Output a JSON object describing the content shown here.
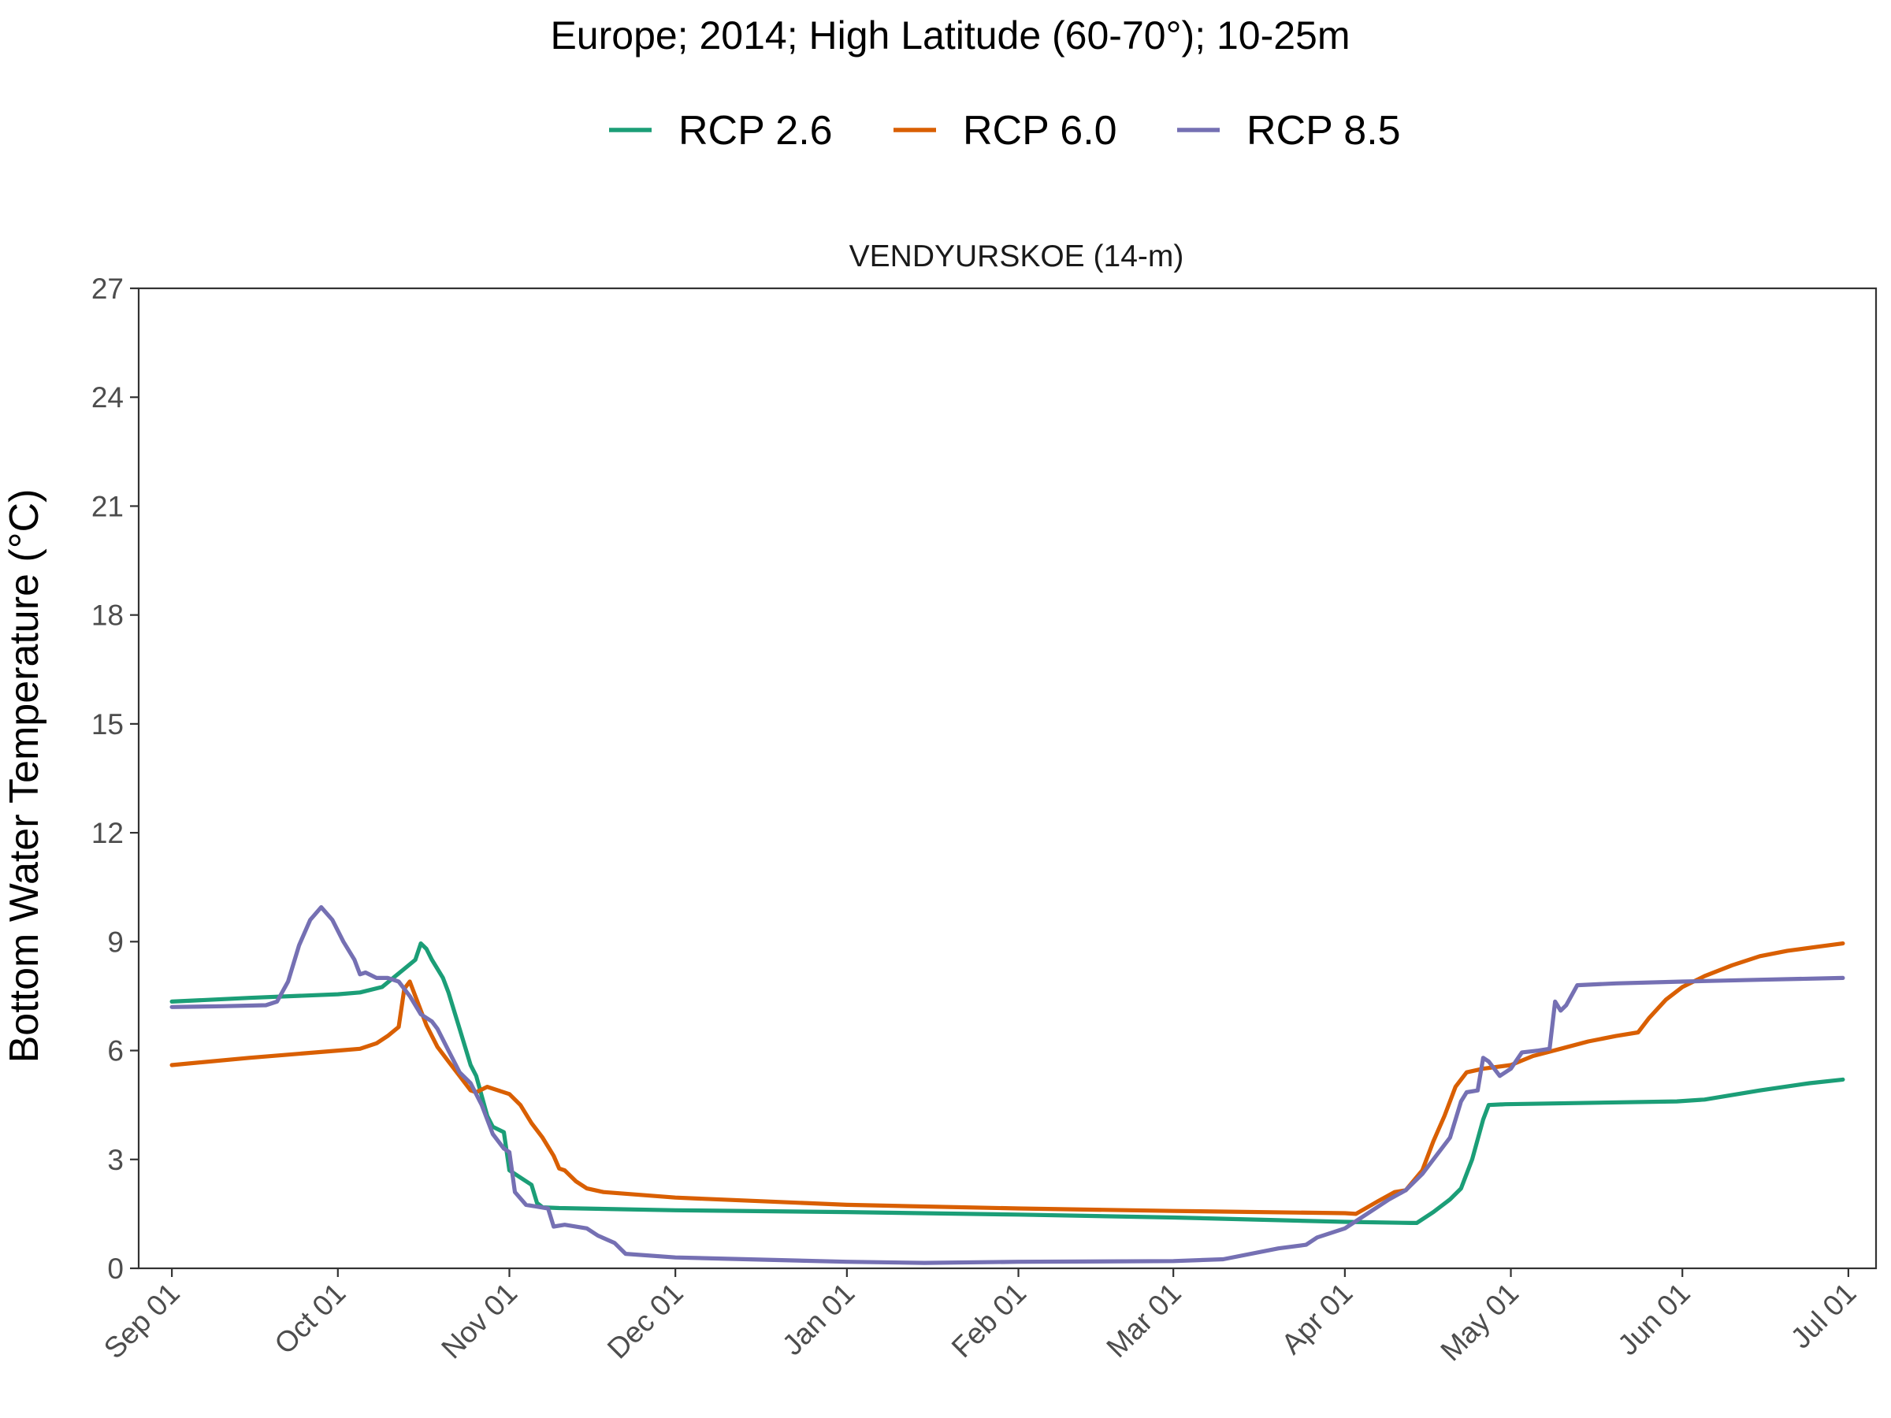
{
  "chart_data": {
    "type": "line",
    "title": "Europe;  2014;  High Latitude (60-70°);  10-25m",
    "subtitle": "VENDYURSKOE (14-m)",
    "xlabel": "",
    "ylabel": "Bottom Water Temperature (°C)",
    "ylim": [
      0,
      27
    ],
    "yticks": [
      0,
      3,
      6,
      9,
      12,
      15,
      18,
      21,
      24,
      27
    ],
    "xlim": [
      "2014-08-26",
      "2015-07-06"
    ],
    "xticks": [
      {
        "date": "2014-09-01",
        "label": "Sep 01"
      },
      {
        "date": "2014-10-01",
        "label": "Oct 01"
      },
      {
        "date": "2014-11-01",
        "label": "Nov 01"
      },
      {
        "date": "2014-12-01",
        "label": "Dec 01"
      },
      {
        "date": "2015-01-01",
        "label": "Jan 01"
      },
      {
        "date": "2015-02-01",
        "label": "Feb 01"
      },
      {
        "date": "2015-03-01",
        "label": "Mar 01"
      },
      {
        "date": "2015-04-01",
        "label": "Apr 01"
      },
      {
        "date": "2015-05-01",
        "label": "May 01"
      },
      {
        "date": "2015-06-01",
        "label": "Jun 01"
      },
      {
        "date": "2015-07-01",
        "label": "Jul 01"
      }
    ],
    "grid": false,
    "legend_position": "top",
    "series": [
      {
        "name": "RCP 2.6",
        "color": "#1b9e77",
        "points": [
          [
            "2014-09-01",
            7.35
          ],
          [
            "2014-09-15",
            7.45
          ],
          [
            "2014-10-01",
            7.55
          ],
          [
            "2014-10-05",
            7.6
          ],
          [
            "2014-10-09",
            7.75
          ],
          [
            "2014-10-11",
            8.0
          ],
          [
            "2014-10-13",
            8.25
          ],
          [
            "2014-10-15",
            8.5
          ],
          [
            "2014-10-16",
            8.95
          ],
          [
            "2014-10-17",
            8.8
          ],
          [
            "2014-10-18",
            8.5
          ],
          [
            "2014-10-20",
            8.0
          ],
          [
            "2014-10-21",
            7.6
          ],
          [
            "2014-10-23",
            6.6
          ],
          [
            "2014-10-25",
            5.6
          ],
          [
            "2014-10-26",
            5.3
          ],
          [
            "2014-10-28",
            4.2
          ],
          [
            "2014-10-29",
            3.9
          ],
          [
            "2014-10-31",
            3.75
          ],
          [
            "2014-11-01",
            2.7
          ],
          [
            "2014-11-03",
            2.5
          ],
          [
            "2014-11-05",
            2.3
          ],
          [
            "2014-11-06",
            1.8
          ],
          [
            "2014-11-07",
            1.68
          ],
          [
            "2014-11-10",
            1.66
          ],
          [
            "2014-12-01",
            1.6
          ],
          [
            "2015-01-01",
            1.55
          ],
          [
            "2015-02-01",
            1.48
          ],
          [
            "2015-03-01",
            1.4
          ],
          [
            "2015-04-01",
            1.28
          ],
          [
            "2015-04-13",
            1.25
          ],
          [
            "2015-04-14",
            1.25
          ],
          [
            "2015-04-17",
            1.55
          ],
          [
            "2015-04-20",
            1.9
          ],
          [
            "2015-04-22",
            2.2
          ],
          [
            "2015-04-24",
            3.0
          ],
          [
            "2015-04-26",
            4.1
          ],
          [
            "2015-04-27",
            4.5
          ],
          [
            "2015-04-30",
            4.52
          ],
          [
            "2015-05-31",
            4.6
          ],
          [
            "2015-06-05",
            4.65
          ],
          [
            "2015-06-15",
            4.9
          ],
          [
            "2015-06-24",
            5.1
          ],
          [
            "2015-06-30",
            5.2
          ]
        ]
      },
      {
        "name": "RCP 6.0",
        "color": "#d95f02",
        "points": [
          [
            "2014-09-01",
            5.6
          ],
          [
            "2014-09-15",
            5.8
          ],
          [
            "2014-10-01",
            6.0
          ],
          [
            "2014-10-05",
            6.05
          ],
          [
            "2014-10-08",
            6.2
          ],
          [
            "2014-10-10",
            6.4
          ],
          [
            "2014-10-12",
            6.65
          ],
          [
            "2014-10-13",
            7.7
          ],
          [
            "2014-10-14",
            7.9
          ],
          [
            "2014-10-15",
            7.5
          ],
          [
            "2014-10-17",
            6.7
          ],
          [
            "2014-10-19",
            6.1
          ],
          [
            "2014-10-21",
            5.7
          ],
          [
            "2014-10-23",
            5.3
          ],
          [
            "2014-10-25",
            4.9
          ],
          [
            "2014-10-26",
            4.85
          ],
          [
            "2014-10-28",
            5.0
          ],
          [
            "2014-10-30",
            4.9
          ],
          [
            "2014-11-01",
            4.8
          ],
          [
            "2014-11-03",
            4.5
          ],
          [
            "2014-11-05",
            4.0
          ],
          [
            "2014-11-07",
            3.6
          ],
          [
            "2014-11-09",
            3.1
          ],
          [
            "2014-11-10",
            2.75
          ],
          [
            "2014-11-11",
            2.7
          ],
          [
            "2014-11-13",
            2.4
          ],
          [
            "2014-11-15",
            2.2
          ],
          [
            "2014-11-18",
            2.1
          ],
          [
            "2014-12-01",
            1.95
          ],
          [
            "2015-01-01",
            1.75
          ],
          [
            "2015-02-01",
            1.65
          ],
          [
            "2015-03-01",
            1.58
          ],
          [
            "2015-04-01",
            1.52
          ],
          [
            "2015-04-03",
            1.5
          ],
          [
            "2015-04-07",
            1.85
          ],
          [
            "2015-04-10",
            2.1
          ],
          [
            "2015-04-12",
            2.15
          ],
          [
            "2015-04-15",
            2.7
          ],
          [
            "2015-04-17",
            3.5
          ],
          [
            "2015-04-19",
            4.2
          ],
          [
            "2015-04-21",
            5.0
          ],
          [
            "2015-04-23",
            5.4
          ],
          [
            "2015-04-26",
            5.5
          ],
          [
            "2015-05-01",
            5.6
          ],
          [
            "2015-05-05",
            5.85
          ],
          [
            "2015-05-10",
            6.05
          ],
          [
            "2015-05-15",
            6.25
          ],
          [
            "2015-05-20",
            6.4
          ],
          [
            "2015-05-24",
            6.5
          ],
          [
            "2015-05-26",
            6.9
          ],
          [
            "2015-05-29",
            7.4
          ],
          [
            "2015-06-01",
            7.75
          ],
          [
            "2015-06-05",
            8.05
          ],
          [
            "2015-06-10",
            8.35
          ],
          [
            "2015-06-15",
            8.6
          ],
          [
            "2015-06-20",
            8.75
          ],
          [
            "2015-06-25",
            8.85
          ],
          [
            "2015-06-30",
            8.95
          ]
        ]
      },
      {
        "name": "RCP 8.5",
        "color": "#7570b3",
        "points": [
          [
            "2014-09-01",
            7.2
          ],
          [
            "2014-09-10",
            7.22
          ],
          [
            "2014-09-18",
            7.25
          ],
          [
            "2014-09-20",
            7.35
          ],
          [
            "2014-09-22",
            7.9
          ],
          [
            "2014-09-24",
            8.9
          ],
          [
            "2014-09-26",
            9.6
          ],
          [
            "2014-09-28",
            9.95
          ],
          [
            "2014-09-30",
            9.6
          ],
          [
            "2014-10-02",
            9.0
          ],
          [
            "2014-10-04",
            8.5
          ],
          [
            "2014-10-05",
            8.1
          ],
          [
            "2014-10-06",
            8.15
          ],
          [
            "2014-10-08",
            8.0
          ],
          [
            "2014-10-10",
            8.0
          ],
          [
            "2014-10-12",
            7.9
          ],
          [
            "2014-10-14",
            7.5
          ],
          [
            "2014-10-16",
            7.0
          ],
          [
            "2014-10-18",
            6.8
          ],
          [
            "2014-10-19",
            6.6
          ],
          [
            "2014-10-21",
            6.0
          ],
          [
            "2014-10-23",
            5.4
          ],
          [
            "2014-10-25",
            5.1
          ],
          [
            "2014-10-27",
            4.5
          ],
          [
            "2014-10-29",
            3.7
          ],
          [
            "2014-10-31",
            3.3
          ],
          [
            "2014-11-01",
            3.2
          ],
          [
            "2014-11-02",
            2.1
          ],
          [
            "2014-11-04",
            1.75
          ],
          [
            "2014-11-06",
            1.7
          ],
          [
            "2014-11-08",
            1.65
          ],
          [
            "2014-11-09",
            1.15
          ],
          [
            "2014-11-11",
            1.2
          ],
          [
            "2014-11-15",
            1.1
          ],
          [
            "2014-11-17",
            0.9
          ],
          [
            "2014-11-20",
            0.7
          ],
          [
            "2014-11-22",
            0.4
          ],
          [
            "2014-12-01",
            0.3
          ],
          [
            "2015-01-01",
            0.18
          ],
          [
            "2015-01-15",
            0.15
          ],
          [
            "2015-02-01",
            0.18
          ],
          [
            "2015-03-01",
            0.2
          ],
          [
            "2015-03-10",
            0.25
          ],
          [
            "2015-03-20",
            0.55
          ],
          [
            "2015-03-25",
            0.65
          ],
          [
            "2015-03-27",
            0.85
          ],
          [
            "2015-04-01",
            1.1
          ],
          [
            "2015-04-05",
            1.5
          ],
          [
            "2015-04-09",
            1.9
          ],
          [
            "2015-04-12",
            2.15
          ],
          [
            "2015-04-15",
            2.6
          ],
          [
            "2015-04-18",
            3.2
          ],
          [
            "2015-04-20",
            3.6
          ],
          [
            "2015-04-22",
            4.6
          ],
          [
            "2015-04-23",
            4.85
          ],
          [
            "2015-04-25",
            4.9
          ],
          [
            "2015-04-26",
            5.8
          ],
          [
            "2015-04-27",
            5.7
          ],
          [
            "2015-04-29",
            5.3
          ],
          [
            "2015-05-01",
            5.5
          ],
          [
            "2015-05-03",
            5.95
          ],
          [
            "2015-05-06",
            6.0
          ],
          [
            "2015-05-08",
            6.05
          ],
          [
            "2015-05-09",
            7.35
          ],
          [
            "2015-05-10",
            7.1
          ],
          [
            "2015-05-11",
            7.25
          ],
          [
            "2015-05-13",
            7.8
          ],
          [
            "2015-05-20",
            7.85
          ],
          [
            "2015-06-01",
            7.9
          ],
          [
            "2015-06-15",
            7.95
          ],
          [
            "2015-06-30",
            8.0
          ]
        ]
      }
    ]
  }
}
